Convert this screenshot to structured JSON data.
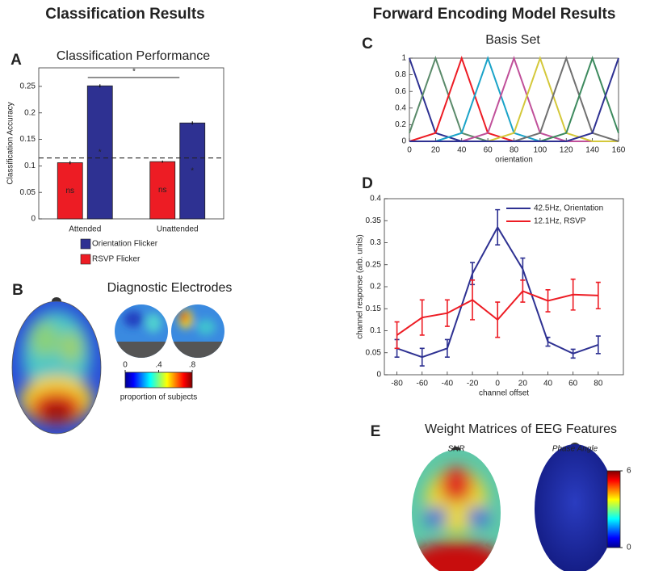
{
  "headers": [
    "Classification Results",
    "Forward Encoding Model Results"
  ],
  "chart_data": [
    {
      "panel": "A",
      "type": "bar",
      "title": "Classification Performance",
      "ylabel": "Classification Accuracy",
      "categories": [
        "Attended",
        "Unattended"
      ],
      "series": [
        {
          "name": "Orientation Flicker",
          "color": "#2e3192",
          "values": [
            0.251,
            0.181
          ],
          "errors": [
            0.003,
            0.003
          ],
          "bar_labels": [
            "*",
            "*"
          ]
        },
        {
          "name": "RSVP Flicker",
          "color": "#ed1c24",
          "values": [
            0.106,
            0.108
          ],
          "errors": [
            0.003,
            0.002
          ],
          "bar_labels": [
            "ns",
            "ns"
          ]
        }
      ],
      "reference_line": 0.115,
      "significance_label": "*",
      "ylim": [
        0,
        0.285
      ],
      "yticks": [
        0,
        0.05,
        0.1,
        0.15,
        0.2,
        0.25
      ]
    },
    {
      "panel": "B",
      "type": "topomap",
      "title": "Diagnostic Electrodes",
      "colormap": "jet",
      "colorbar_label": "proportion of subjects",
      "clim": [
        0,
        0.8
      ],
      "cticks": [
        0,
        {
          "value": 0.4,
          "label": ".4"
        },
        {
          "value": 0.8,
          "label": ".8"
        }
      ]
    },
    {
      "panel": "C",
      "type": "line",
      "title": "Basis Set",
      "xlabel": "orientation",
      "x": [
        0,
        20,
        40,
        60,
        80,
        100,
        120,
        140,
        160
      ],
      "series": [
        {
          "color": "#2e3192",
          "values": [
            1,
            0.1,
            0,
            0,
            0,
            0,
            0,
            0,
            0
          ]
        },
        {
          "color": "#5a8a6a",
          "values": [
            0.1,
            1,
            0.1,
            0,
            0,
            0,
            0,
            0,
            0
          ]
        },
        {
          "color": "#ed1c24",
          "values": [
            0,
            0.1,
            1,
            0.1,
            0,
            0,
            0,
            0,
            0
          ]
        },
        {
          "color": "#1aa3c8",
          "values": [
            0,
            0,
            0.1,
            1,
            0.1,
            0,
            0,
            0,
            0
          ]
        },
        {
          "color": "#c0509a",
          "values": [
            0,
            0,
            0,
            0.1,
            1,
            0.1,
            0,
            0,
            0
          ]
        },
        {
          "color": "#d4c83a",
          "values": [
            0,
            0,
            0,
            0,
            0.1,
            1,
            0.1,
            0,
            0
          ]
        },
        {
          "color": "#707070",
          "values": [
            0,
            0,
            0,
            0,
            0,
            0.1,
            1,
            0.1,
            0
          ]
        },
        {
          "color": "#3d8a5e",
          "values": [
            0,
            0,
            0,
            0,
            0,
            0,
            0.1,
            1,
            0.1
          ]
        },
        {
          "color": "#2e3192",
          "values": [
            0,
            0,
            0,
            0,
            0,
            0,
            0,
            0.1,
            1
          ]
        }
      ],
      "xlim": [
        0,
        160
      ],
      "ylim": [
        0,
        1
      ],
      "xticks": [
        0,
        20,
        40,
        60,
        80,
        100,
        120,
        140,
        160
      ],
      "yticks": [
        0,
        0.2,
        0.4,
        0.6,
        0.8,
        1
      ]
    },
    {
      "panel": "D",
      "type": "line",
      "xlabel": "channel offset",
      "ylabel": "channel response (arb. units)",
      "x": [
        -80,
        -60,
        -40,
        -20,
        0,
        20,
        40,
        60,
        80
      ],
      "series": [
        {
          "name": "42.5Hz, Orientation",
          "color": "#2e3192",
          "values": [
            0.06,
            0.04,
            0.06,
            0.23,
            0.335,
            0.24,
            0.075,
            0.048,
            0.068
          ],
          "errors": [
            0.02,
            0.02,
            0.02,
            0.025,
            0.04,
            0.025,
            0.01,
            0.01,
            0.02
          ]
        },
        {
          "name": "12.1Hz, RSVP",
          "color": "#ed1c24",
          "values": [
            0.09,
            0.13,
            0.14,
            0.17,
            0.125,
            0.19,
            0.168,
            0.182,
            0.18
          ],
          "errors": [
            0.03,
            0.04,
            0.03,
            0.045,
            0.04,
            0.025,
            0.025,
            0.035,
            0.03
          ]
        }
      ],
      "xlim": [
        -90,
        100
      ],
      "ylim": [
        0,
        0.4
      ],
      "xticks": [
        -80,
        -60,
        -40,
        -20,
        0,
        20,
        40,
        60,
        80
      ],
      "yticks": [
        0,
        0.05,
        0.1,
        0.15,
        0.2,
        0.25,
        0.3,
        0.35,
        0.4
      ],
      "legend": "upper right"
    },
    {
      "panel": "E",
      "type": "topomap",
      "title": "Weight Matrices of EEG Features",
      "subtitles": [
        "SNR",
        "Phase Angle"
      ],
      "colormap": "jet",
      "clim": [
        0,
        6
      ],
      "cticks": [
        0,
        6
      ]
    }
  ]
}
